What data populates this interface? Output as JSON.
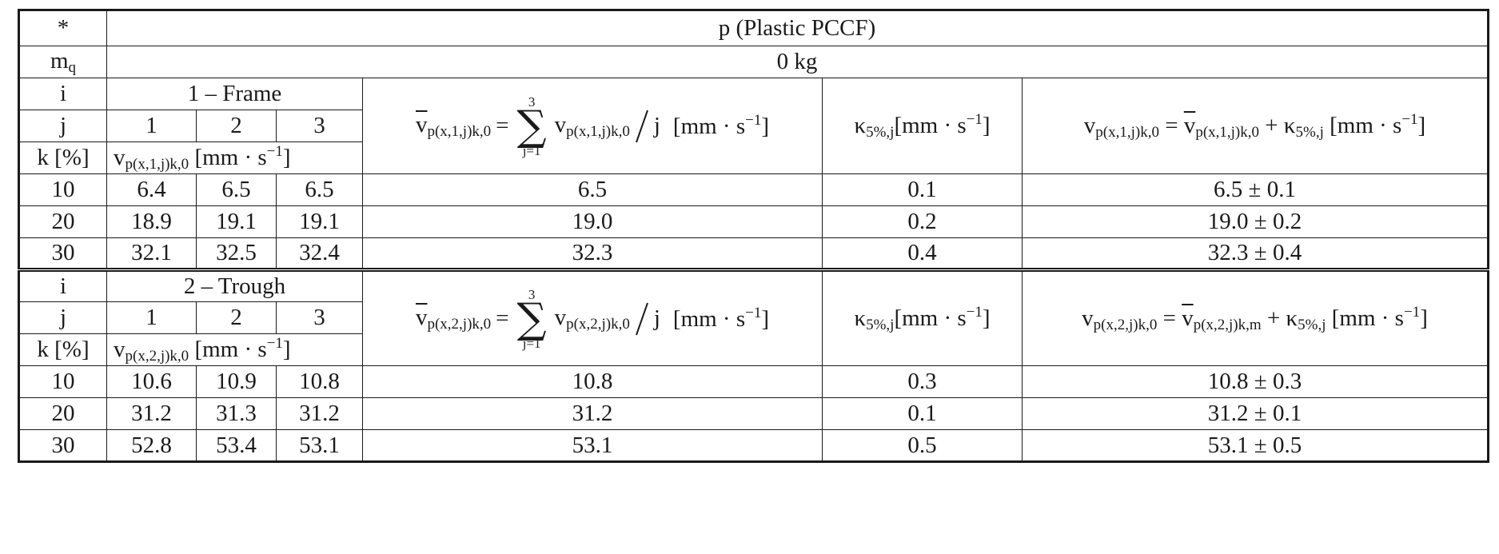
{
  "table": {
    "corner": "*",
    "title": "p (Plastic PCCF)",
    "mq_label": "m",
    "mq_sub": "q",
    "mass": "0 kg",
    "i_label": "i",
    "j_label": "j",
    "k_label": "k [%]",
    "j_values": [
      "1",
      "2",
      "3"
    ],
    "sum_upper": "3",
    "sum_lower": "j=1",
    "unit": "[mm · s",
    "unit_exp": "−1",
    "unit_close": "]",
    "sections": [
      {
        "i_value": "1 – Frame",
        "v_label": "v",
        "v_sub": "p(x,1,j)k,0",
        "mean_lhs_sub": "p(x,1,j)k,0",
        "mean_term_sub": "p(x,1,j)k,0",
        "kappa_label": "κ",
        "kappa_sub": "5%,j",
        "final_lhs_sub": "p(x,1,j)k,0",
        "final_rhs_sub": "p(x,1,j)k,0",
        "final_kappa_sub": "5%,j",
        "rows": [
          {
            "k": "10",
            "v1": "6.4",
            "v2": "6.5",
            "v3": "6.5",
            "mean": "6.5",
            "kappa": "0.1",
            "result": "6.5 ± 0.1"
          },
          {
            "k": "20",
            "v1": "18.9",
            "v2": "19.1",
            "v3": "19.1",
            "mean": "19.0",
            "kappa": "0.2",
            "result": "19.0 ± 0.2"
          },
          {
            "k": "30",
            "v1": "32.1",
            "v2": "32.5",
            "v3": "32.4",
            "mean": "32.3",
            "kappa": "0.4",
            "result": "32.3 ± 0.4"
          }
        ]
      },
      {
        "i_value": "2 – Trough",
        "v_label": "v",
        "v_sub": "p(x,2,j)k,0",
        "mean_lhs_sub": "p(x,2,j)k,0",
        "mean_term_sub": "p(x,2,j)k,0",
        "kappa_label": "κ",
        "kappa_sub": "5%,j",
        "final_lhs_sub": "p(x,2,j)k,0",
        "final_rhs_sub": "p(x,2,j)k,m",
        "final_kappa_sub": "5%,j",
        "rows": [
          {
            "k": "10",
            "v1": "10.6",
            "v2": "10.9",
            "v3": "10.8",
            "mean": "10.8",
            "kappa": "0.3",
            "result": "10.8 ± 0.3"
          },
          {
            "k": "20",
            "v1": "31.2",
            "v2": "31.3",
            "v3": "31.2",
            "mean": "31.2",
            "kappa": "0.1",
            "result": "31.2 ± 0.1"
          },
          {
            "k": "30",
            "v1": "52.8",
            "v2": "53.4",
            "v3": "53.1",
            "mean": "53.1",
            "kappa": "0.5",
            "result": "53.1 ± 0.5"
          }
        ]
      }
    ]
  }
}
